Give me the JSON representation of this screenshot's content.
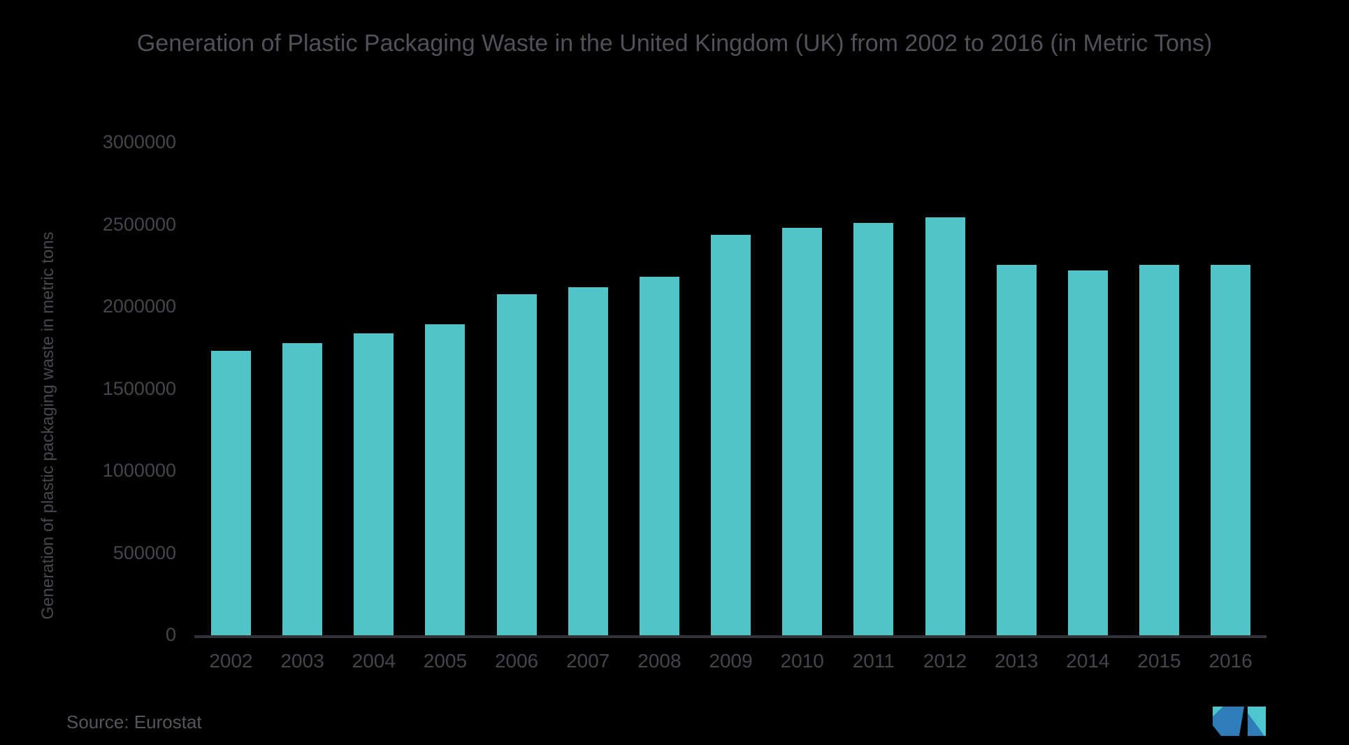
{
  "title": "Generation of Plastic Packaging Waste in the United Kingdom (UK) from 2002 to 2016 (in Metric Tons)",
  "source": "Source: Eurostat",
  "colors": {
    "background": "#000000",
    "bar": "#51C4C8",
    "title_text": "#515257",
    "axis_text": "#45464B",
    "axis_line": "#323338",
    "source_text": "#55565B",
    "logo_blue": "#2F7CB9",
    "logo_teal": "#4CC7CE"
  },
  "chart_data": {
    "type": "bar",
    "title": "Generation of Plastic Packaging Waste in the United Kingdom (UK) from 2002 to 2016 (in Metric Tons)",
    "xlabel": "",
    "ylabel": "Generation of plastic packaging waste in metric tons",
    "categories": [
      "2002",
      "2003",
      "2004",
      "2005",
      "2006",
      "2007",
      "2008",
      "2009",
      "2010",
      "2011",
      "2012",
      "2013",
      "2014",
      "2015",
      "2016"
    ],
    "values": [
      1730000,
      1780000,
      1840000,
      1895000,
      2075000,
      2120000,
      2185000,
      2440000,
      2480000,
      2510000,
      2545000,
      2255000,
      2220000,
      2255000,
      2255000
    ],
    "ylim": [
      0,
      3000000
    ],
    "ytick_step": 500000,
    "grid": false,
    "legend": false,
    "bar_color": "#51C4C8"
  }
}
